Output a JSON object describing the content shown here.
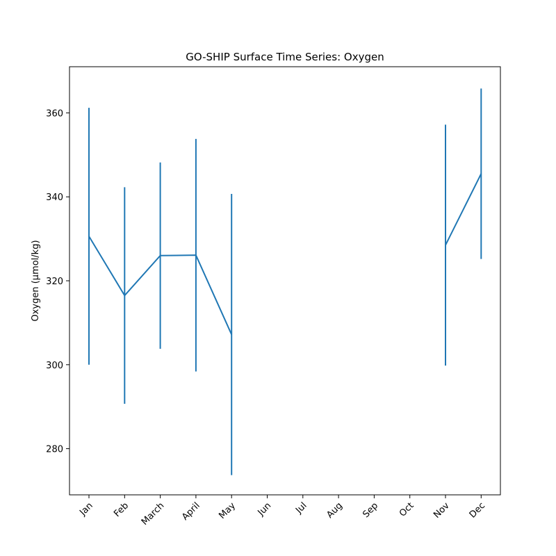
{
  "chart_data": {
    "type": "line",
    "title": "GO-SHIP Surface Time Series: Oxygen",
    "xlabel": "",
    "ylabel": "Oxygen (µmol/kg)",
    "categories": [
      "Jan",
      "Feb",
      "March",
      "April",
      "May",
      "Jun",
      "Jul",
      "Aug",
      "Sep",
      "Oct",
      "Nov",
      "Dec"
    ],
    "ylim": [
      269,
      371
    ],
    "yticks": [
      280,
      300,
      320,
      340,
      360
    ],
    "color": "#1f77b4",
    "grid": false,
    "series": [
      {
        "values": [
          330.6,
          316.5,
          326.0,
          326.1,
          307.2,
          null,
          null,
          null,
          null,
          null,
          328.5,
          345.5
        ],
        "error": [
          30.6,
          25.8,
          22.2,
          27.7,
          33.5,
          null,
          null,
          null,
          null,
          null,
          28.7,
          20.3
        ]
      }
    ]
  }
}
